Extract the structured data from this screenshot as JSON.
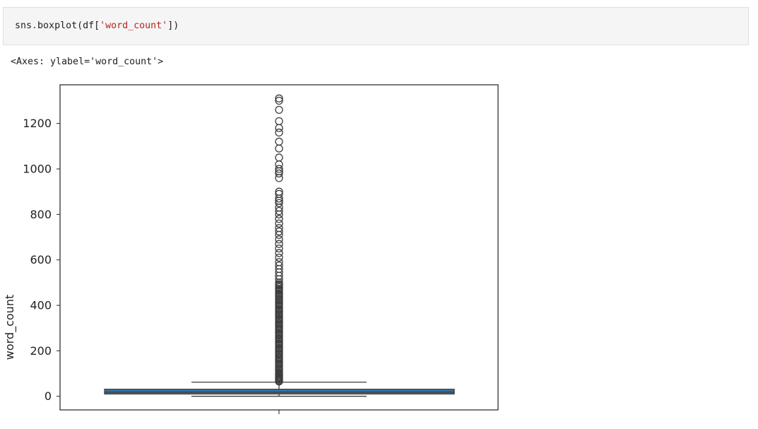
{
  "cell": {
    "code_prefix": "sns",
    "code_dot": ".",
    "code_func": "boxplot(df[",
    "code_arg": "'word_count'",
    "code_suffix": "])"
  },
  "output": {
    "repr": "<Axes: ylabel='word_count'>"
  },
  "colors": {
    "box_fill": "#3274a1",
    "line": "#3d3d3d",
    "cell_bg": "#f5f5f5"
  },
  "chart_data": {
    "type": "box",
    "title": "",
    "xlabel": "",
    "ylabel": "word_count",
    "ylim": [
      -60,
      1370
    ],
    "yticks": [
      0,
      200,
      400,
      600,
      800,
      1000,
      1200
    ],
    "box": {
      "whisker_low": 0,
      "q1": 10,
      "median": 18,
      "q3": 31,
      "whisker_high": 62
    },
    "outliers": [
      1310,
      1300,
      1260,
      1210,
      1180,
      1160,
      1120,
      1090,
      1050,
      1020,
      1000,
      990,
      980,
      960,
      900,
      890,
      870,
      860,
      850,
      830,
      815,
      800,
      780,
      760,
      740,
      725,
      710,
      690,
      670,
      650,
      630,
      610,
      590,
      575,
      560,
      545,
      530,
      515,
      500,
      490,
      480,
      470,
      460,
      450,
      440,
      430,
      420,
      410,
      400,
      390,
      380,
      370,
      360,
      350,
      340,
      330,
      320,
      310,
      300,
      290,
      280,
      270,
      260,
      250,
      240,
      230,
      220,
      210,
      200,
      190,
      180,
      170,
      160,
      150,
      140,
      130,
      120,
      110,
      100,
      95,
      90,
      85,
      80,
      75,
      70,
      65
    ],
    "grid": false
  }
}
